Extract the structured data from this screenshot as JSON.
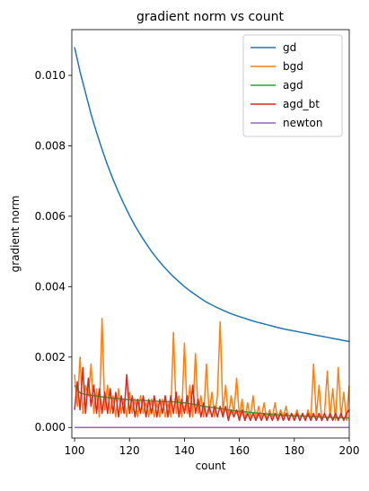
{
  "chart_data": {
    "type": "line",
    "title": "gradient norm vs count",
    "xlabel": "count",
    "ylabel": "gradient norm",
    "xlim": [
      99,
      200
    ],
    "ylim": [
      -0.0003,
      0.0113
    ],
    "xticks": [
      100,
      120,
      140,
      160,
      180,
      200
    ],
    "yticks": [
      0.0,
      0.002,
      0.004,
      0.006,
      0.008,
      0.01
    ],
    "ytick_labels": [
      "0.000",
      "0.002",
      "0.004",
      "0.006",
      "0.008",
      "0.010"
    ],
    "grid": false,
    "legend_position": "top-right",
    "series": [
      {
        "name": "gd",
        "color": "#1f77b4",
        "x": [
          100,
          102,
          104,
          106,
          108,
          110,
          112,
          114,
          116,
          118,
          120,
          122,
          124,
          126,
          128,
          130,
          132,
          134,
          136,
          138,
          140,
          142,
          144,
          146,
          148,
          150,
          152,
          154,
          156,
          158,
          160,
          162,
          164,
          166,
          168,
          170,
          172,
          174,
          176,
          178,
          180,
          182,
          184,
          186,
          188,
          190,
          192,
          194,
          196,
          198,
          200
        ],
        "values": [
          0.0108,
          0.0101,
          0.0095,
          0.0089,
          0.00838,
          0.0079,
          0.00745,
          0.00705,
          0.00668,
          0.00634,
          0.00602,
          0.00573,
          0.00547,
          0.00523,
          0.005,
          0.0048,
          0.00461,
          0.00444,
          0.00428,
          0.00414,
          0.004,
          0.00388,
          0.00377,
          0.00366,
          0.00356,
          0.00348,
          0.0034,
          0.00333,
          0.00326,
          0.0032,
          0.00315,
          0.0031,
          0.00305,
          0.003,
          0.00296,
          0.00292,
          0.00288,
          0.00284,
          0.0028,
          0.00277,
          0.00274,
          0.00271,
          0.00268,
          0.00265,
          0.00262,
          0.00259,
          0.00256,
          0.00253,
          0.0025,
          0.00247,
          0.00244
        ]
      },
      {
        "name": "bgd",
        "color": "#ff7f0e",
        "x": [
          100,
          101,
          102,
          103,
          104,
          105,
          106,
          107,
          108,
          109,
          110,
          111,
          112,
          113,
          114,
          115,
          116,
          117,
          118,
          119,
          120,
          121,
          122,
          123,
          124,
          125,
          126,
          127,
          128,
          129,
          130,
          131,
          132,
          133,
          134,
          135,
          136,
          137,
          138,
          139,
          140,
          141,
          142,
          143,
          144,
          145,
          146,
          147,
          148,
          149,
          150,
          151,
          152,
          153,
          154,
          155,
          156,
          157,
          158,
          159,
          160,
          161,
          162,
          163,
          164,
          165,
          166,
          167,
          168,
          169,
          170,
          171,
          172,
          173,
          174,
          175,
          176,
          177,
          178,
          179,
          180,
          181,
          182,
          183,
          184,
          185,
          186,
          187,
          188,
          189,
          190,
          191,
          192,
          193,
          194,
          195,
          196,
          197,
          198,
          199,
          200
        ],
        "values": [
          0.0015,
          0.0006,
          0.002,
          0.0004,
          0.0012,
          0.0009,
          0.0018,
          0.0004,
          0.0011,
          0.0003,
          0.0031,
          0.0005,
          0.0012,
          0.0004,
          0.0009,
          0.0003,
          0.0011,
          0.0004,
          0.0008,
          0.0003,
          0.001,
          0.0004,
          0.0008,
          0.0003,
          0.0009,
          0.0004,
          0.0007,
          0.0003,
          0.0008,
          0.0003,
          0.0007,
          0.0003,
          0.0008,
          0.0003,
          0.0007,
          0.0003,
          0.0027,
          0.0004,
          0.0009,
          0.0003,
          0.0024,
          0.0004,
          0.0012,
          0.0003,
          0.0021,
          0.0004,
          0.0009,
          0.0003,
          0.0018,
          0.0004,
          0.001,
          0.0003,
          0.0009,
          0.003,
          0.0004,
          0.0012,
          0.0003,
          0.0009,
          0.0004,
          0.0014,
          0.0003,
          0.0008,
          0.0002,
          0.0007,
          0.0003,
          0.0009,
          0.0002,
          0.0006,
          0.0003,
          0.0007,
          0.0002,
          0.0005,
          0.0003,
          0.0007,
          0.0002,
          0.0005,
          0.0003,
          0.0006,
          0.0002,
          0.0004,
          0.0003,
          0.0005,
          0.0002,
          0.0004,
          0.0002,
          0.0005,
          0.0002,
          0.0018,
          0.0003,
          0.0012,
          0.0002,
          0.0004,
          0.0016,
          0.0003,
          0.0011,
          0.0002,
          0.0017,
          0.0003,
          0.001,
          0.0002,
          0.0012
        ]
      },
      {
        "name": "agd",
        "color": "#2ca02c",
        "x": [
          100,
          102,
          104,
          106,
          108,
          110,
          112,
          114,
          116,
          118,
          120,
          124,
          128,
          132,
          136,
          140,
          144,
          148,
          152,
          156,
          160,
          164,
          168,
          172,
          176,
          180,
          184,
          188,
          192,
          196,
          200
        ],
        "values": [
          0.0012,
          0.00098,
          0.00094,
          0.00092,
          0.00089,
          0.00087,
          0.00085,
          0.00083,
          0.00082,
          0.0008,
          0.00079,
          0.00077,
          0.00075,
          0.00074,
          0.00073,
          0.0007,
          0.00065,
          0.00059,
          0.00055,
          0.0005,
          0.00046,
          0.00043,
          0.0004,
          0.00037,
          0.00035,
          0.00033,
          0.00032,
          0.0003,
          0.00029,
          0.00028,
          0.00027
        ]
      },
      {
        "name": "agd_bt",
        "color": "#d62728",
        "x": [
          100,
          101,
          102,
          103,
          104,
          105,
          106,
          107,
          108,
          109,
          110,
          111,
          112,
          113,
          114,
          115,
          116,
          117,
          118,
          119,
          120,
          121,
          122,
          123,
          124,
          125,
          126,
          127,
          128,
          129,
          130,
          131,
          132,
          133,
          134,
          135,
          136,
          137,
          138,
          139,
          140,
          141,
          142,
          143,
          144,
          145,
          146,
          147,
          148,
          149,
          150,
          151,
          152,
          153,
          154,
          155,
          156,
          157,
          158,
          159,
          160,
          161,
          162,
          163,
          164,
          165,
          166,
          167,
          168,
          169,
          170,
          171,
          172,
          173,
          174,
          175,
          176,
          177,
          178,
          179,
          180,
          181,
          182,
          183,
          184,
          185,
          186,
          187,
          188,
          189,
          190,
          191,
          192,
          193,
          194,
          195,
          196,
          197,
          198,
          199,
          200
        ],
        "values": [
          0.0005,
          0.0013,
          0.0005,
          0.0017,
          0.0004,
          0.0014,
          0.0006,
          0.0012,
          0.0004,
          0.0011,
          0.0004,
          0.001,
          0.0004,
          0.0011,
          0.0004,
          0.001,
          0.0003,
          0.0009,
          0.0004,
          0.0015,
          0.0004,
          0.0009,
          0.0003,
          0.0008,
          0.0004,
          0.0009,
          0.0003,
          0.0008,
          0.0004,
          0.0009,
          0.0003,
          0.0008,
          0.0004,
          0.0009,
          0.0003,
          0.0009,
          0.0004,
          0.001,
          0.0003,
          0.0008,
          0.0004,
          0.0009,
          0.0003,
          0.0012,
          0.0004,
          0.0008,
          0.0003,
          0.0007,
          0.0003,
          0.0006,
          0.0003,
          0.0006,
          0.0003,
          0.0006,
          0.0003,
          0.0006,
          0.0002,
          0.0005,
          0.0003,
          0.0005,
          0.0002,
          0.0005,
          0.0002,
          0.0004,
          0.0002,
          0.0004,
          0.0002,
          0.0004,
          0.0002,
          0.0004,
          0.0002,
          0.0004,
          0.0002,
          0.0004,
          0.0002,
          0.0004,
          0.0002,
          0.0004,
          0.0002,
          0.0004,
          0.0002,
          0.0004,
          0.0002,
          0.0004,
          0.0002,
          0.0004,
          0.0002,
          0.0004,
          0.0002,
          0.0004,
          0.0002,
          0.0004,
          0.0002,
          0.0004,
          0.0002,
          0.0004,
          0.0002,
          0.0004,
          0.0002,
          0.0004,
          0.0005
        ]
      },
      {
        "name": "newton",
        "color": "#9467bd",
        "x": [
          100,
          200
        ],
        "values": [
          0.0,
          0.0
        ]
      }
    ]
  }
}
